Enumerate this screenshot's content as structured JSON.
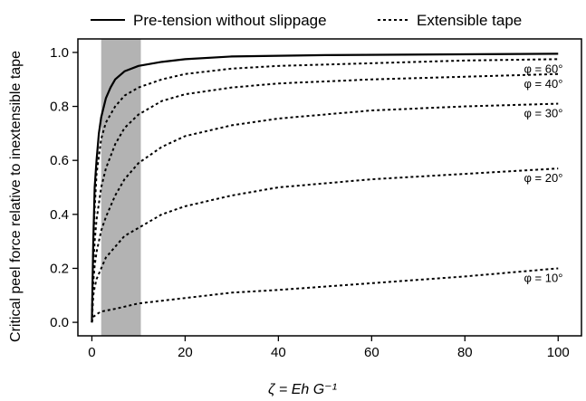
{
  "chart_data": {
    "type": "line",
    "xlabel": "ζ = Eh G⁻¹",
    "ylabel": "Critical peel force relative to inextensible tape",
    "xlim": [
      -3,
      105
    ],
    "ylim": [
      -0.05,
      1.05
    ],
    "x_ticks": [
      0,
      20,
      40,
      60,
      80,
      100
    ],
    "y_ticks": [
      0.0,
      0.2,
      0.4,
      0.6,
      0.8,
      1.0
    ],
    "x_tick_labels": [
      "0",
      "20",
      "40",
      "60",
      "80",
      "100"
    ],
    "y_tick_labels": [
      "0.0",
      "0.2",
      "0.4",
      "0.6",
      "0.8",
      "1.0"
    ],
    "grid": false,
    "legend_placement": "top",
    "legend": [
      {
        "label": "Pre-tension without slippage",
        "style": "solid"
      },
      {
        "label": "Extensible tape",
        "style": "dotted"
      }
    ],
    "shaded_region": {
      "x": [
        2,
        10.5
      ],
      "color": "#b3b3b3"
    },
    "series": [
      {
        "style": "solid",
        "annotation": "",
        "points": [
          [
            0,
            0
          ],
          [
            0.3,
            0.3
          ],
          [
            0.6,
            0.5
          ],
          [
            1,
            0.6
          ],
          [
            1.5,
            0.7
          ],
          [
            2,
            0.76
          ],
          [
            3,
            0.83
          ],
          [
            4,
            0.87
          ],
          [
            5,
            0.9
          ],
          [
            7,
            0.93
          ],
          [
            10,
            0.95
          ],
          [
            15,
            0.965
          ],
          [
            20,
            0.975
          ],
          [
            30,
            0.985
          ],
          [
            50,
            0.99
          ],
          [
            100,
            0.995
          ]
        ]
      },
      {
        "style": "dotted",
        "annotation": "φ = 60°",
        "points": [
          [
            0,
            0
          ],
          [
            0.3,
            0.28
          ],
          [
            0.6,
            0.42
          ],
          [
            1,
            0.55
          ],
          [
            2,
            0.68
          ],
          [
            3,
            0.74
          ],
          [
            5,
            0.8
          ],
          [
            7,
            0.84
          ],
          [
            10,
            0.87
          ],
          [
            15,
            0.9
          ],
          [
            20,
            0.92
          ],
          [
            30,
            0.94
          ],
          [
            40,
            0.95
          ],
          [
            60,
            0.96
          ],
          [
            80,
            0.97
          ],
          [
            100,
            0.975
          ]
        ]
      },
      {
        "style": "dotted",
        "annotation": "φ = 40°",
        "points": [
          [
            0,
            0
          ],
          [
            0.3,
            0.2
          ],
          [
            0.6,
            0.3
          ],
          [
            1,
            0.38
          ],
          [
            2,
            0.5
          ],
          [
            3,
            0.57
          ],
          [
            5,
            0.66
          ],
          [
            7,
            0.72
          ],
          [
            10,
            0.77
          ],
          [
            15,
            0.82
          ],
          [
            20,
            0.845
          ],
          [
            30,
            0.87
          ],
          [
            40,
            0.885
          ],
          [
            60,
            0.9
          ],
          [
            80,
            0.91
          ],
          [
            100,
            0.92
          ]
        ]
      },
      {
        "style": "dotted",
        "annotation": "φ = 30°",
        "points": [
          [
            0,
            0
          ],
          [
            0.3,
            0.15
          ],
          [
            0.6,
            0.21
          ],
          [
            1,
            0.26
          ],
          [
            2,
            0.34
          ],
          [
            3,
            0.39
          ],
          [
            5,
            0.47
          ],
          [
            7,
            0.53
          ],
          [
            10,
            0.59
          ],
          [
            15,
            0.65
          ],
          [
            20,
            0.69
          ],
          [
            30,
            0.73
          ],
          [
            40,
            0.755
          ],
          [
            60,
            0.785
          ],
          [
            80,
            0.8
          ],
          [
            100,
            0.81
          ]
        ]
      },
      {
        "style": "dotted",
        "annotation": "φ = 20°",
        "points": [
          [
            0,
            0
          ],
          [
            0.3,
            0.1
          ],
          [
            0.6,
            0.13
          ],
          [
            1,
            0.16
          ],
          [
            2,
            0.2
          ],
          [
            3,
            0.24
          ],
          [
            5,
            0.28
          ],
          [
            7,
            0.32
          ],
          [
            10,
            0.35
          ],
          [
            15,
            0.4
          ],
          [
            20,
            0.43
          ],
          [
            30,
            0.47
          ],
          [
            40,
            0.5
          ],
          [
            60,
            0.53
          ],
          [
            80,
            0.55
          ],
          [
            100,
            0.57
          ]
        ]
      },
      {
        "style": "dotted",
        "annotation": "φ = 10°",
        "points": [
          [
            0,
            0
          ],
          [
            0.3,
            0.02
          ],
          [
            1,
            0.03
          ],
          [
            2,
            0.04
          ],
          [
            5,
            0.05
          ],
          [
            10,
            0.07
          ],
          [
            20,
            0.09
          ],
          [
            30,
            0.11
          ],
          [
            40,
            0.12
          ],
          [
            60,
            0.145
          ],
          [
            80,
            0.17
          ],
          [
            100,
            0.2
          ]
        ]
      }
    ]
  }
}
